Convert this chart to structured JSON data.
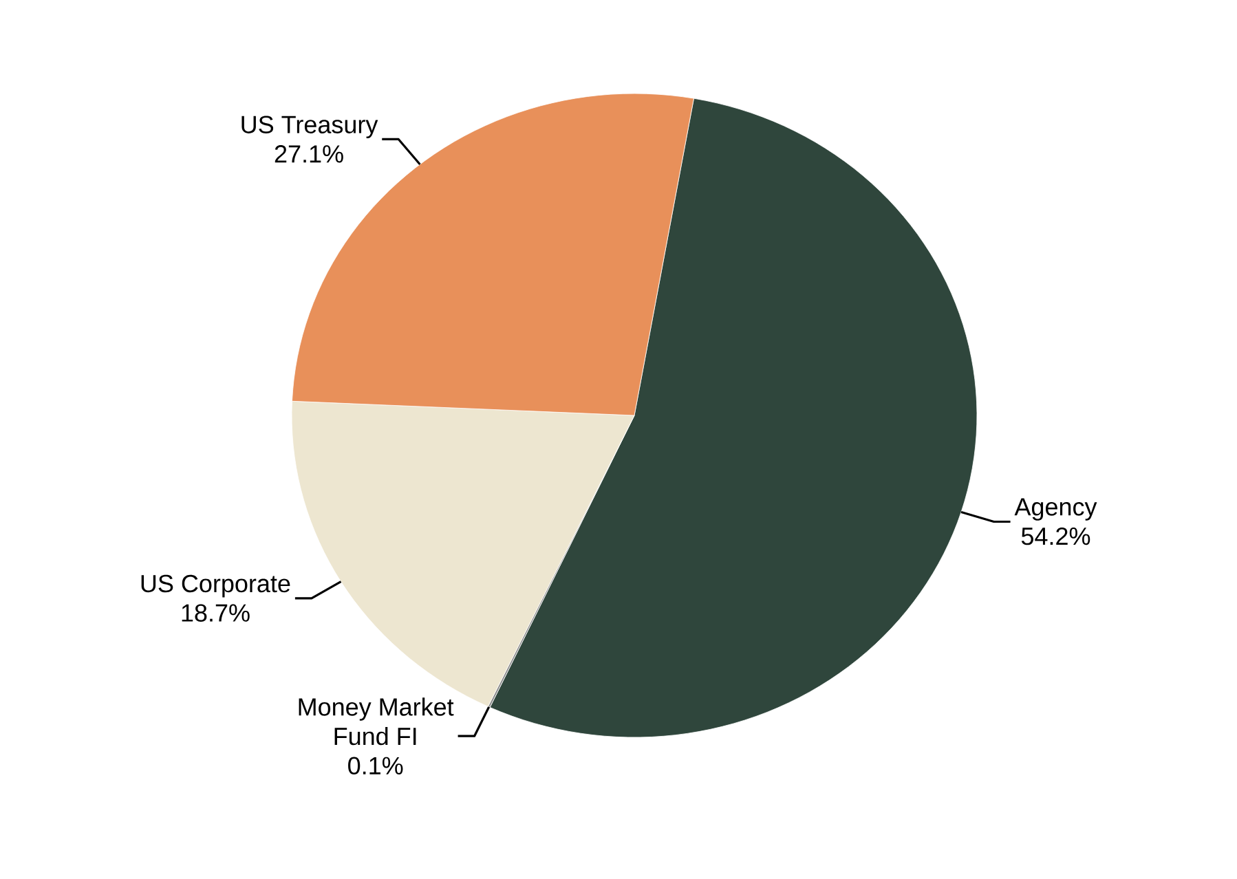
{
  "chart_data": {
    "type": "pie",
    "categories": [
      "Agency",
      "Money Market Fund FI",
      "US Corporate",
      "US Treasury"
    ],
    "values": [
      54.2,
      0.1,
      18.7,
      27.1
    ],
    "value_labels": [
      "54.2%",
      "0.1%",
      "18.7%",
      "27.1%"
    ],
    "colors": [
      "#2f463c",
      "#8c8c8c",
      "#ede6d0",
      "#e8905a"
    ]
  }
}
